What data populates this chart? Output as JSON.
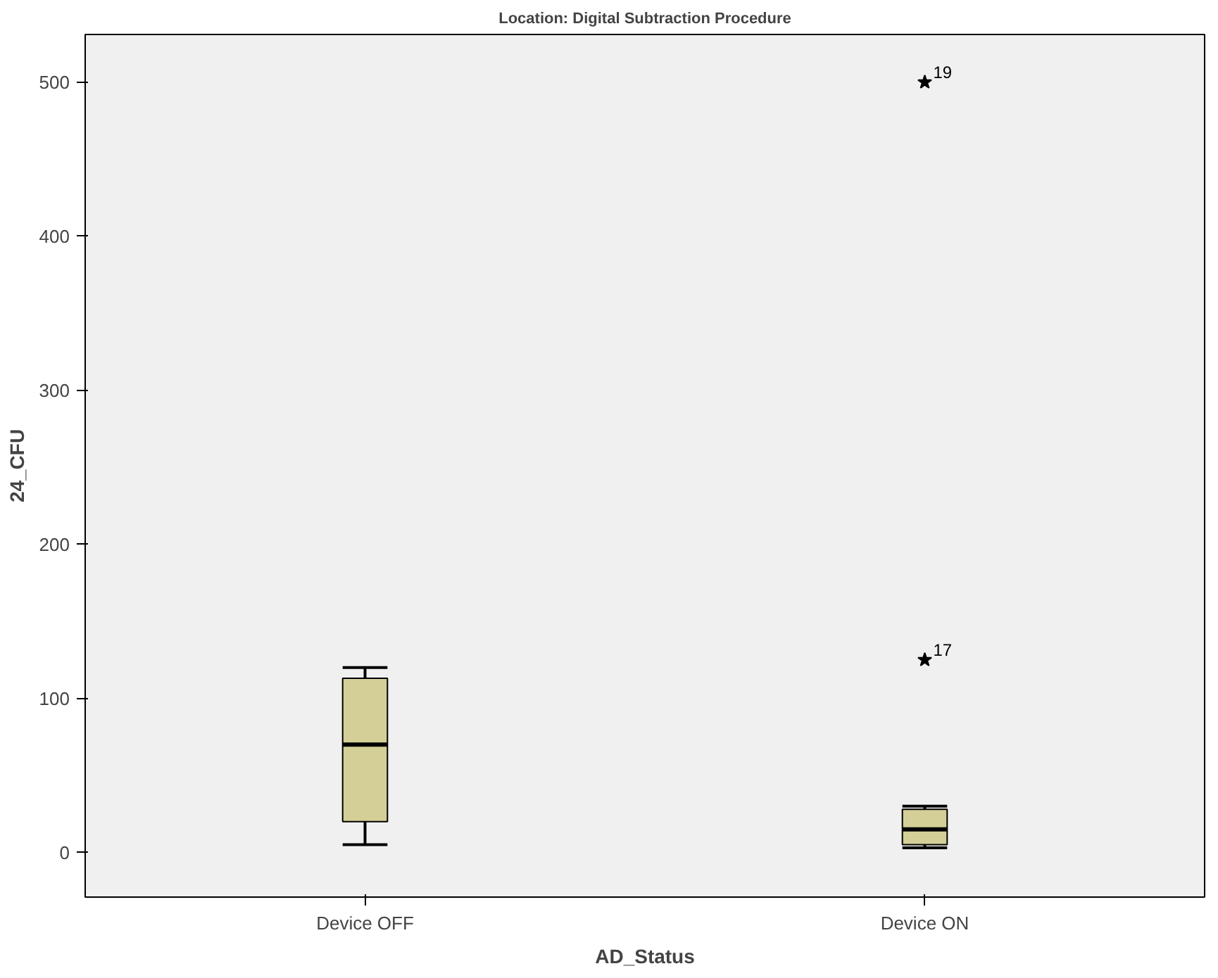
{
  "chart_data": {
    "type": "box",
    "title": "Location: Digital Subtraction Procedure",
    "xlabel": "AD_Status",
    "ylabel": "24_CFU",
    "categories": [
      "Device OFF",
      "Device ON"
    ],
    "boxes": [
      {
        "low": 5,
        "q1": 20,
        "median": 70,
        "q3": 113,
        "high": 120
      },
      {
        "low": 3,
        "q1": 5,
        "median": 15,
        "q3": 28,
        "high": 30,
        "outliers": [
          125,
          500
        ]
      }
    ],
    "color": "#d3cf97",
    "marker": "star",
    "annotations": [
      "17",
      "19"
    ],
    "ylim": [
      -29,
      531
    ],
    "yticks": [
      0,
      100,
      200,
      300,
      400,
      500
    ],
    "grid": false
  }
}
